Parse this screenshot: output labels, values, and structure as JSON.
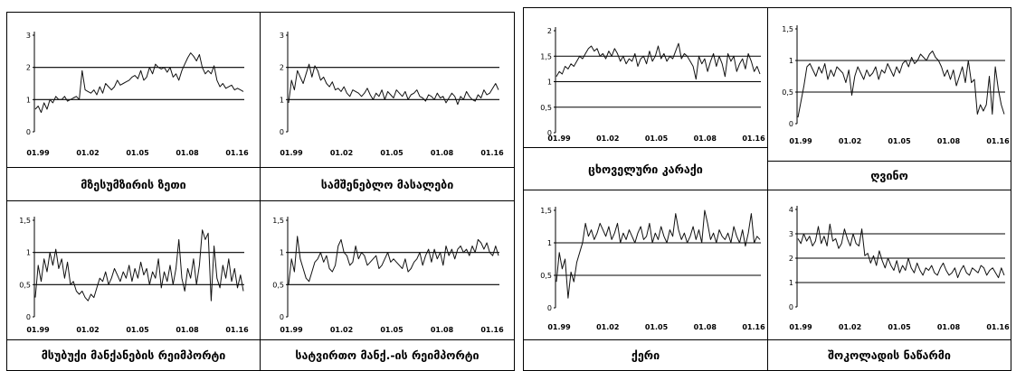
{
  "panels": [
    {
      "captions": [
        "მზესუმზირის ზეთი",
        "სამშენებლო მასალები",
        "მსუბუქი მანქანების რეიმპორტი",
        "სატვირთო მანქ.-ის რეიმპორტი"
      ]
    },
    {
      "captions": [
        "ცხოველური კარაქი",
        "ღვინო",
        "ქერი",
        "შოკოლადის ნაწარმი"
      ]
    }
  ],
  "chart_data": [
    {
      "type": "line",
      "caption": "მზესუმზირის ზეთი",
      "x_tick_labels": [
        "01.99",
        "01.02",
        "01.05",
        "01.08",
        "01.16"
      ],
      "ylim": [
        0,
        3
      ],
      "y_ticks": [
        "0",
        "1",
        "2",
        "3"
      ],
      "reference_lines": [
        1,
        2
      ],
      "series": [
        {
          "values": [
            0.7,
            0.8,
            0.6,
            0.9,
            0.7,
            1.0,
            0.9,
            1.1,
            1.0,
            1.0,
            1.1,
            0.95,
            1.0,
            1.05,
            1.1,
            1.0,
            1.9,
            1.3,
            1.25,
            1.2,
            1.3,
            1.15,
            1.4,
            1.2,
            1.5,
            1.4,
            1.3,
            1.4,
            1.6,
            1.45,
            1.5,
            1.55,
            1.6,
            1.7,
            1.75,
            1.65,
            1.9,
            1.6,
            1.7,
            2.0,
            1.8,
            2.1,
            2.0,
            1.95,
            2.0,
            1.85,
            2.0,
            1.7,
            1.8,
            1.6,
            1.9,
            2.1,
            2.3,
            2.45,
            2.35,
            2.2,
            2.4,
            2.0,
            1.8,
            1.9,
            1.8,
            2.05,
            1.6,
            1.4,
            1.5,
            1.35,
            1.4,
            1.45,
            1.3,
            1.35,
            1.3,
            1.25
          ]
        }
      ]
    },
    {
      "type": "line",
      "caption": "სამშენებლო მასალები",
      "x_tick_labels": [
        "01.99",
        "01.02",
        "01.05",
        "01.08",
        "01.16"
      ],
      "ylim": [
        0,
        3
      ],
      "y_ticks": [
        "0",
        "1",
        "2",
        "3"
      ],
      "reference_lines": [
        1,
        2
      ],
      "series": [
        {
          "values": [
            0.9,
            1.6,
            1.3,
            1.9,
            1.7,
            1.5,
            1.8,
            2.1,
            1.7,
            2.05,
            1.9,
            1.6,
            1.7,
            1.5,
            1.4,
            1.55,
            1.3,
            1.35,
            1.25,
            1.4,
            1.2,
            1.1,
            1.3,
            1.25,
            1.2,
            1.1,
            1.2,
            1.35,
            1.15,
            1.0,
            1.2,
            1.1,
            1.3,
            1.0,
            1.25,
            1.15,
            1.05,
            1.3,
            1.2,
            1.1,
            1.25,
            1.0,
            1.15,
            1.2,
            1.3,
            1.1,
            1.05,
            0.95,
            1.15,
            1.1,
            1.0,
            1.2,
            1.05,
            1.1,
            0.9,
            1.05,
            1.2,
            1.1,
            0.85,
            1.1,
            1.0,
            1.25,
            1.1,
            1.0,
            0.95,
            1.15,
            1.05,
            1.3,
            1.15,
            1.2,
            1.35,
            1.5,
            1.3
          ]
        }
      ]
    },
    {
      "type": "line",
      "caption": "მსუბუქი მანქანების რეიმპორტი",
      "x_tick_labels": [
        "01.99",
        "01.02",
        "01.05",
        "01.08",
        "01.16"
      ],
      "ylim": [
        0,
        1.5
      ],
      "y_ticks": [
        "0",
        "0,5",
        "1",
        "1,5"
      ],
      "reference_lines": [
        0.5,
        1
      ],
      "series": [
        {
          "values": [
            0.3,
            0.8,
            0.55,
            0.9,
            0.7,
            1.0,
            0.8,
            1.05,
            0.75,
            0.9,
            0.6,
            0.85,
            0.5,
            0.55,
            0.4,
            0.35,
            0.4,
            0.3,
            0.25,
            0.35,
            0.3,
            0.45,
            0.6,
            0.55,
            0.7,
            0.5,
            0.6,
            0.75,
            0.65,
            0.55,
            0.7,
            0.6,
            0.8,
            0.55,
            0.75,
            0.6,
            0.85,
            0.65,
            0.75,
            0.5,
            0.7,
            0.6,
            0.9,
            0.45,
            0.7,
            0.55,
            0.8,
            0.5,
            0.75,
            1.2,
            0.6,
            0.4,
            0.75,
            0.6,
            0.9,
            0.5,
            0.8,
            1.35,
            1.2,
            1.3,
            0.25,
            1.1,
            0.6,
            0.45,
            0.8,
            0.6,
            0.9,
            0.55,
            0.75,
            0.45,
            0.65,
            0.4
          ]
        }
      ]
    },
    {
      "type": "line",
      "caption": "სატვირთო მანქ.-ის რეიმპორტი",
      "x_tick_labels": [
        "01.99",
        "01.02",
        "01.05",
        "01.08",
        "01.16"
      ],
      "ylim": [
        0,
        1.5
      ],
      "y_ticks": [
        "0",
        "0,5",
        "1",
        "1,5"
      ],
      "reference_lines": [
        0.5,
        1
      ],
      "series": [
        {
          "values": [
            0.5,
            0.9,
            0.7,
            1.25,
            0.9,
            0.75,
            0.6,
            0.55,
            0.7,
            0.85,
            0.9,
            1.0,
            0.85,
            0.95,
            0.75,
            0.7,
            0.8,
            1.1,
            1.2,
            1.0,
            0.95,
            0.8,
            0.85,
            1.1,
            0.9,
            1.0,
            0.95,
            0.8,
            0.85,
            0.9,
            0.95,
            0.75,
            0.8,
            0.9,
            1.0,
            0.85,
            0.9,
            0.85,
            0.8,
            0.75,
            0.9,
            0.7,
            0.75,
            0.85,
            0.9,
            1.0,
            0.8,
            0.95,
            1.05,
            0.85,
            1.05,
            0.9,
            1.0,
            0.8,
            1.1,
            0.95,
            1.05,
            0.9,
            1.05,
            1.1,
            1.0,
            1.05,
            0.95,
            1.1,
            1.0,
            1.2,
            1.15,
            1.05,
            1.15,
            1.0,
            0.95,
            1.1,
            0.95
          ]
        }
      ]
    },
    {
      "type": "line",
      "caption": "ცხოველური კარაქი",
      "x_tick_labels": [
        "01.99",
        "01.02",
        "01.05",
        "01.08",
        "01.16"
      ],
      "ylim": [
        0,
        2
      ],
      "y_ticks": [
        "0",
        "0,5",
        "1",
        "1,5",
        "2"
      ],
      "reference_lines": [
        0.5,
        1,
        1.5
      ],
      "series": [
        {
          "values": [
            1.1,
            1.2,
            1.15,
            1.3,
            1.25,
            1.35,
            1.3,
            1.4,
            1.5,
            1.45,
            1.55,
            1.65,
            1.7,
            1.6,
            1.65,
            1.5,
            1.55,
            1.45,
            1.6,
            1.5,
            1.65,
            1.55,
            1.4,
            1.5,
            1.35,
            1.45,
            1.4,
            1.55,
            1.3,
            1.45,
            1.5,
            1.35,
            1.6,
            1.4,
            1.5,
            1.7,
            1.45,
            1.55,
            1.4,
            1.5,
            1.45,
            1.6,
            1.75,
            1.45,
            1.55,
            1.5,
            1.4,
            1.3,
            1.05,
            1.5,
            1.35,
            1.45,
            1.2,
            1.4,
            1.55,
            1.3,
            1.5,
            1.35,
            1.1,
            1.55,
            1.4,
            1.5,
            1.2,
            1.35,
            1.45,
            1.25,
            1.55,
            1.4,
            1.2,
            1.3,
            1.15
          ]
        }
      ]
    },
    {
      "type": "line",
      "caption": "ღვინო",
      "x_tick_labels": [
        "01.99",
        "01.02",
        "01.05",
        "01.08",
        "01.16"
      ],
      "ylim": [
        0,
        1.5
      ],
      "y_ticks": [
        "0",
        "0,5",
        "1",
        "1,5"
      ],
      "reference_lines": [
        0.5,
        1
      ],
      "series": [
        {
          "values": [
            0.1,
            0.35,
            0.6,
            0.9,
            0.95,
            0.85,
            0.75,
            0.9,
            0.8,
            0.95,
            0.7,
            0.85,
            0.75,
            0.9,
            0.85,
            0.8,
            0.65,
            0.85,
            0.45,
            0.75,
            0.9,
            0.8,
            0.7,
            0.85,
            0.75,
            0.8,
            0.9,
            0.7,
            0.85,
            0.8,
            0.95,
            0.85,
            0.75,
            0.9,
            0.8,
            0.95,
            1.0,
            0.9,
            1.05,
            0.95,
            1.0,
            1.1,
            1.05,
            1.0,
            1.1,
            1.15,
            1.05,
            1.0,
            0.9,
            0.75,
            0.85,
            0.7,
            0.85,
            0.6,
            0.75,
            0.9,
            0.65,
            1.0,
            0.65,
            0.7,
            0.15,
            0.3,
            0.2,
            0.3,
            0.75,
            0.15,
            0.9,
            0.55,
            0.3,
            0.15
          ]
        }
      ]
    },
    {
      "type": "line",
      "caption": "ქერი",
      "x_tick_labels": [
        "01.99",
        "01.02",
        "01.05",
        "01.08",
        "01.16"
      ],
      "ylim": [
        0,
        1.5
      ],
      "y_ticks": [
        "0",
        "0,5",
        "1",
        "1,5"
      ],
      "reference_lines": [
        0.5,
        1
      ],
      "series": [
        {
          "values": [
            0.4,
            0.85,
            0.6,
            0.75,
            0.15,
            0.55,
            0.4,
            0.7,
            0.85,
            1.0,
            1.3,
            1.1,
            1.2,
            1.05,
            1.15,
            1.3,
            1.2,
            1.1,
            1.25,
            1.05,
            1.15,
            1.3,
            1.0,
            1.15,
            1.05,
            1.2,
            1.1,
            1.0,
            1.15,
            1.25,
            1.05,
            1.1,
            1.3,
            1.0,
            1.15,
            1.05,
            1.25,
            1.1,
            1.0,
            1.2,
            1.1,
            1.45,
            1.2,
            1.05,
            1.15,
            1.0,
            1.1,
            1.25,
            1.05,
            1.2,
            1.0,
            1.5,
            1.3,
            1.05,
            1.15,
            1.0,
            1.2,
            1.1,
            1.05,
            1.15,
            1.0,
            1.25,
            1.1,
            1.0,
            1.2,
            0.95,
            1.15,
            1.45,
            1.0,
            1.1,
            1.05
          ]
        }
      ]
    },
    {
      "type": "line",
      "caption": "შოკოლადის ნაწარმი",
      "x_tick_labels": [
        "01.99",
        "01.02",
        "01.05",
        "01.08",
        "01.16"
      ],
      "ylim": [
        0,
        4
      ],
      "y_ticks": [
        "0",
        "1",
        "2",
        "3",
        "4"
      ],
      "reference_lines": [
        1,
        2,
        3
      ],
      "series": [
        {
          "values": [
            2.8,
            2.6,
            3.0,
            2.7,
            2.9,
            2.5,
            2.7,
            3.3,
            2.6,
            2.9,
            2.5,
            3.4,
            2.7,
            2.8,
            2.4,
            2.6,
            3.2,
            2.8,
            2.5,
            3.0,
            2.6,
            2.5,
            3.2,
            2.1,
            2.2,
            1.8,
            2.1,
            1.7,
            2.3,
            1.9,
            1.6,
            2.0,
            1.7,
            1.5,
            1.9,
            1.4,
            1.7,
            1.5,
            2.0,
            1.6,
            1.4,
            1.8,
            1.5,
            1.3,
            1.6,
            1.5,
            1.7,
            1.4,
            1.3,
            1.6,
            1.8,
            1.5,
            1.3,
            1.4,
            1.6,
            1.2,
            1.5,
            1.7,
            1.4,
            1.3,
            1.6,
            1.5,
            1.4,
            1.7,
            1.6,
            1.3,
            1.5,
            1.6,
            1.4,
            1.2,
            1.6,
            1.3
          ]
        }
      ]
    }
  ]
}
